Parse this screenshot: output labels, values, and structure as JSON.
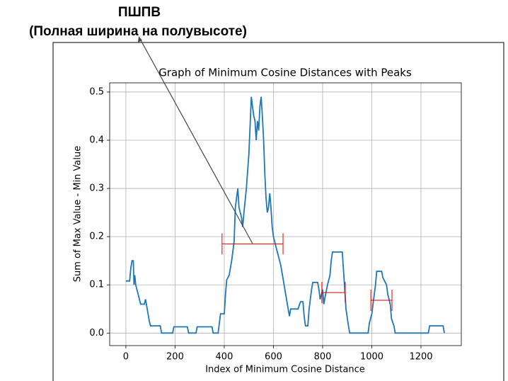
{
  "annotation": {
    "title": "ПШПВ",
    "subtitle": "(Полная ширина на полувысоте)"
  },
  "chart_data": {
    "type": "line",
    "title": "Graph of Minimum Cosine Distances with Peaks",
    "xlabel": "Index of Minimum Cosine Distance",
    "ylabel": "Sum of Max Value - Min Value",
    "xlim": [
      -66,
      1364
    ],
    "ylim": [
      -0.026,
      0.519
    ],
    "xticks": [
      0,
      200,
      400,
      600,
      800,
      1000,
      1200
    ],
    "yticks": [
      {
        "value": 0,
        "label": "0.0"
      },
      0.1,
      0.2,
      0.3,
      0.4,
      0.5
    ],
    "grid": true,
    "color": "#1f77b4",
    "interval_color": "#e00000",
    "x": [
      0,
      15,
      20,
      25,
      30,
      33,
      36,
      40,
      50,
      60,
      75,
      80,
      85,
      95,
      100,
      140,
      145,
      190,
      195,
      250,
      255,
      285,
      290,
      350,
      355,
      375,
      380,
      385,
      400,
      405,
      410,
      420,
      430,
      440,
      445,
      450,
      455,
      460,
      465,
      470,
      475,
      480,
      490,
      500,
      505,
      510,
      515,
      520,
      525,
      530,
      535,
      540,
      545,
      550,
      555,
      560,
      565,
      570,
      575,
      580,
      585,
      590,
      595,
      600,
      610,
      620,
      630,
      640,
      650,
      660,
      665,
      670,
      700,
      710,
      720,
      725,
      730,
      740,
      745,
      755,
      760,
      780,
      785,
      790,
      800,
      805,
      810,
      820,
      830,
      835,
      840,
      880,
      885,
      890,
      895,
      905,
      910,
      985,
      990,
      1000,
      1010,
      1015,
      1020,
      1040,
      1045,
      1060,
      1065,
      1075,
      1080,
      1090,
      1095,
      1230,
      1235,
      1290,
      1295
    ],
    "values": [
      0.108,
      0.108,
      0.135,
      0.15,
      0.15,
      0.1,
      0.12,
      0.1,
      0.08,
      0.06,
      0.06,
      0.07,
      0.055,
      0.025,
      0.015,
      0.015,
      0,
      0,
      0.013,
      0.013,
      0,
      0,
      0.013,
      0.013,
      0,
      0,
      0.02,
      0.04,
      0.04,
      0.08,
      0.11,
      0.12,
      0.15,
      0.19,
      0.26,
      0.28,
      0.3,
      0.26,
      0.25,
      0.24,
      0.22,
      0.25,
      0.3,
      0.37,
      0.43,
      0.49,
      0.47,
      0.45,
      0.44,
      0.4,
      0.44,
      0.42,
      0.47,
      0.49,
      0.45,
      0.4,
      0.33,
      0.28,
      0.25,
      0.26,
      0.29,
      0.26,
      0.22,
      0.2,
      0.18,
      0.16,
      0.14,
      0.11,
      0.08,
      0.05,
      0.035,
      0.05,
      0.05,
      0.065,
      0.065,
      0.035,
      0.015,
      0.015,
      0.05,
      0.09,
      0.105,
      0.105,
      0.09,
      0.07,
      0.09,
      0.06,
      0.075,
      0.1,
      0.12,
      0.15,
      0.168,
      0.168,
      0.13,
      0.09,
      0.05,
      0.015,
      0,
      0,
      0.02,
      0.04,
      0.08,
      0.1,
      0.128,
      0.128,
      0.115,
      0.1,
      0.08,
      0.06,
      0.03,
      0.015,
      0,
      0,
      0.015,
      0.015,
      0
    ],
    "intervals": [
      {
        "left": 391,
        "right": 639,
        "y": 0.185
      },
      {
        "left": 797,
        "right": 892,
        "y": 0.084
      },
      {
        "left": 996,
        "right": 1082,
        "y": 0.068
      }
    ]
  }
}
